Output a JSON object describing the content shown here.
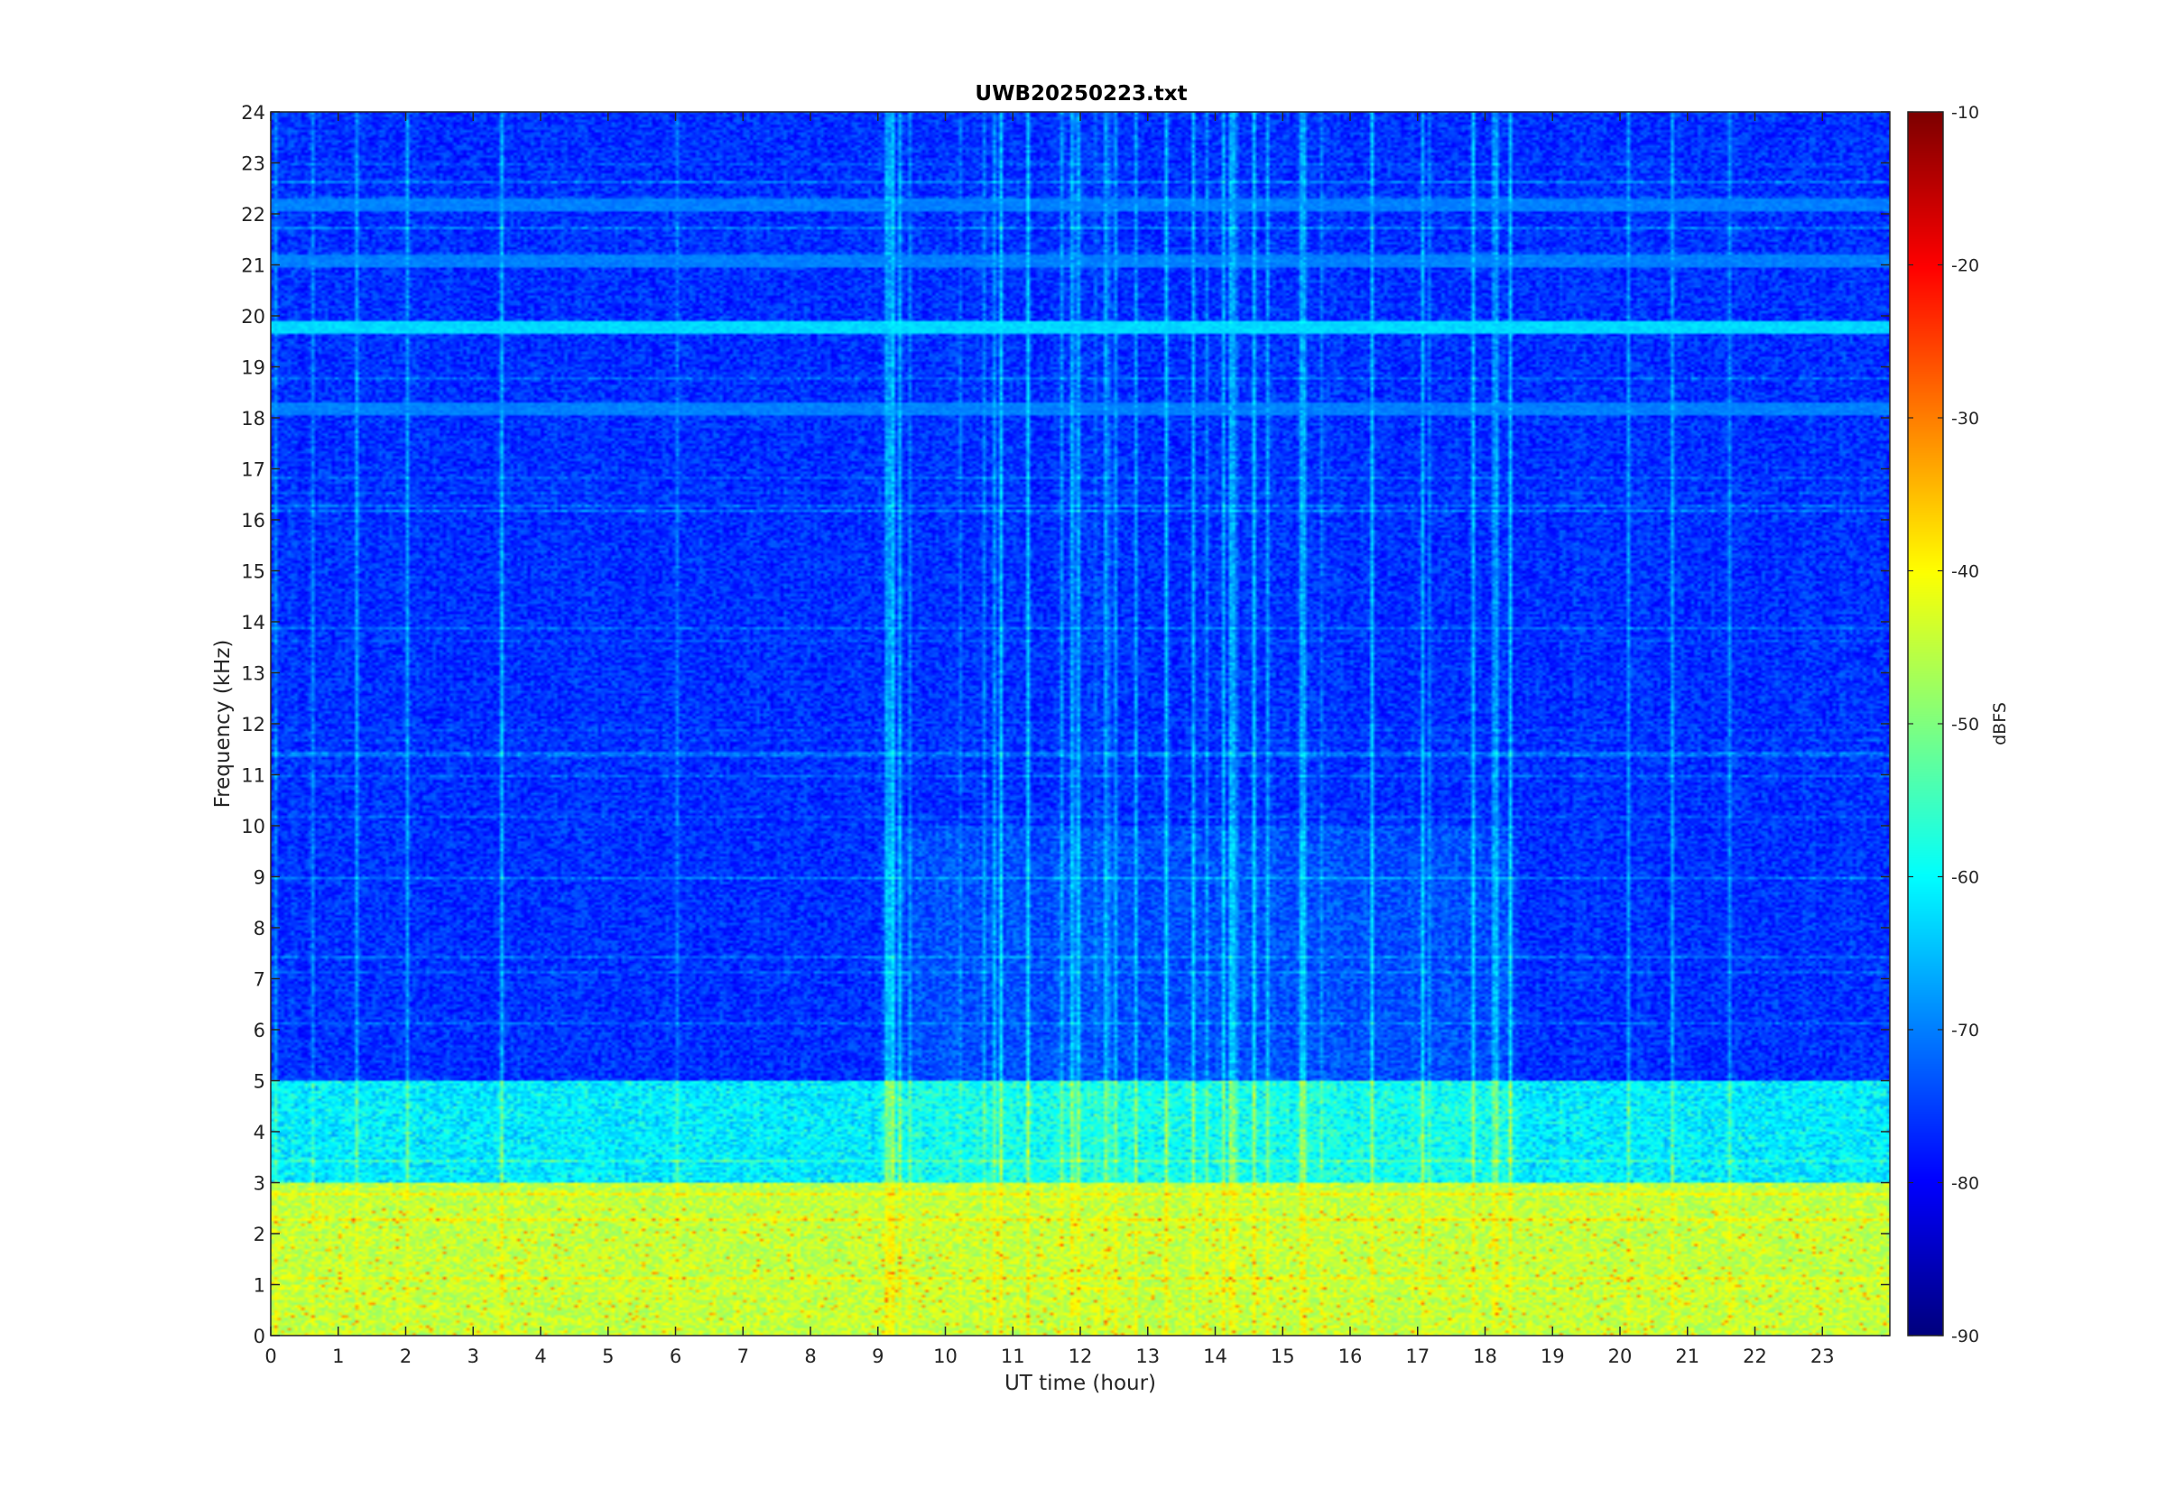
{
  "chart_data": {
    "type": "heatmap",
    "title": "UWB20250223.txt",
    "xlabel": "UT time (hour)",
    "ylabel": "Frequency (kHz)",
    "xlim": [
      0,
      24
    ],
    "ylim": [
      0,
      24
    ],
    "x_ticks": [
      0,
      1,
      2,
      3,
      4,
      5,
      6,
      7,
      8,
      9,
      10,
      11,
      12,
      13,
      14,
      15,
      16,
      17,
      18,
      19,
      20,
      21,
      22,
      23
    ],
    "y_ticks": [
      0,
      1,
      2,
      3,
      4,
      5,
      6,
      7,
      8,
      9,
      10,
      11,
      12,
      13,
      14,
      15,
      16,
      17,
      18,
      19,
      20,
      21,
      22,
      23,
      24
    ],
    "colorbar": {
      "label": "dBFS",
      "range": [
        -90,
        -10
      ],
      "ticks": [
        -10,
        -20,
        -30,
        -40,
        -50,
        -60,
        -70,
        -80,
        -90
      ],
      "colormap": "jet"
    },
    "bands": [
      {
        "freq_range_khz": [
          0,
          3
        ],
        "level_dbfs": -45
      },
      {
        "freq_range_khz": [
          3,
          5
        ],
        "level_dbfs": -62
      },
      {
        "freq_range_khz": [
          5,
          24
        ],
        "level_dbfs": -77
      }
    ],
    "persistent_lines_khz": [
      19.8,
      22.2,
      18.2,
      21.1
    ]
  }
}
